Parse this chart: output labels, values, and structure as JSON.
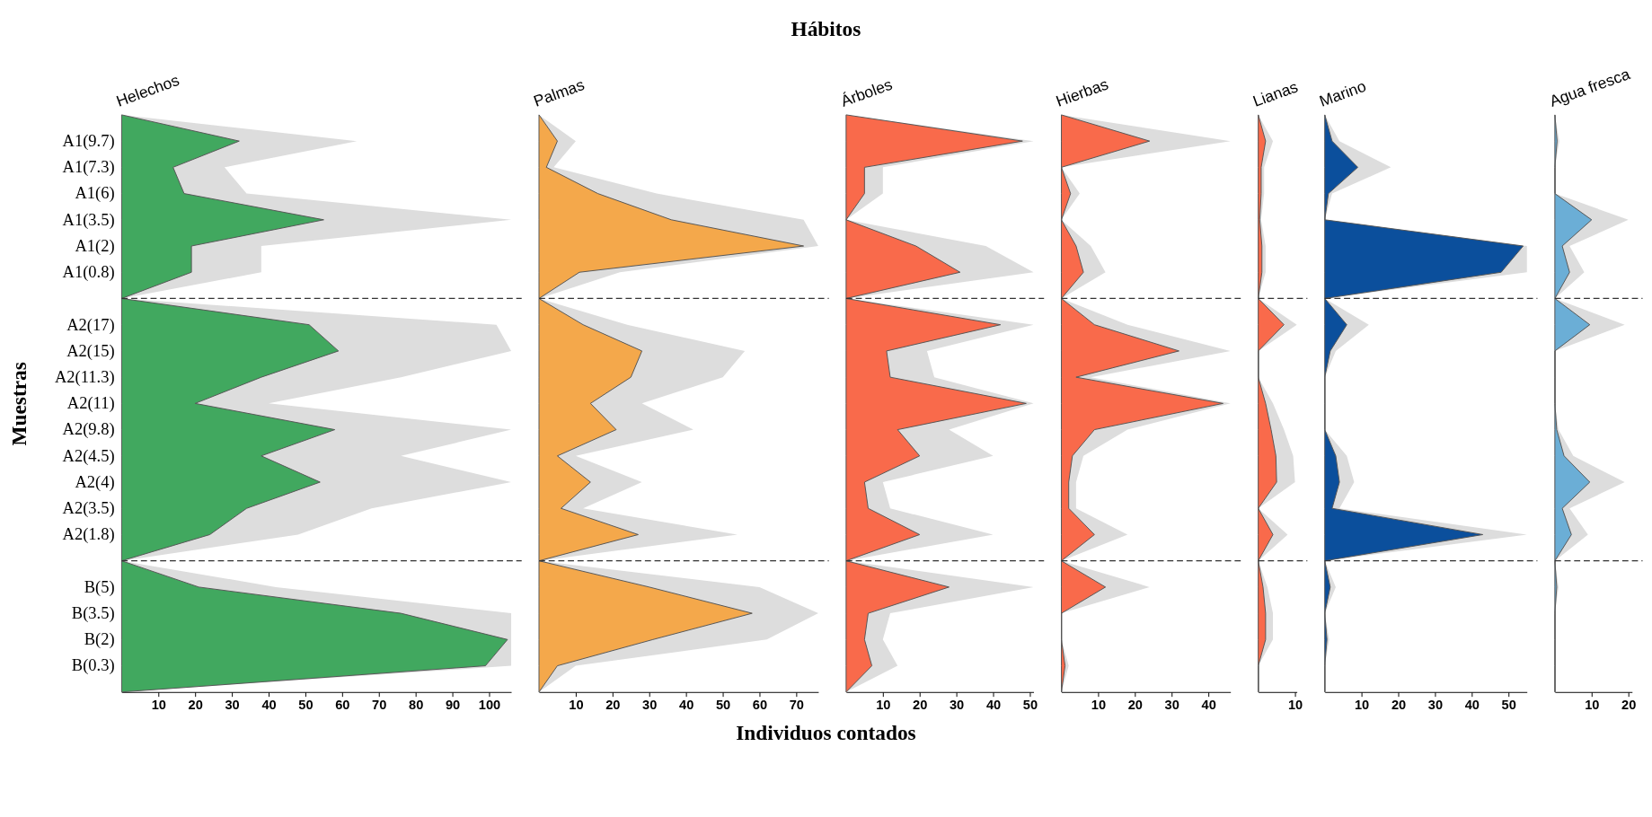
{
  "chart_data": [
    {
      "type": "area",
      "orientation": "horizontal",
      "title": "Helechos",
      "ylabel": "Muestras",
      "annotations": [
        "Hábitos",
        "Individuos contados"
      ],
      "categories": [
        null,
        "A1(9.7)",
        "A1(7.3)",
        "A1(6)",
        "A1(3.5)",
        "A1(2)",
        "A1(0.8)",
        null,
        "A2(17)",
        "A2(15)",
        "A2(11.3)",
        "A2(11)",
        "A2(9.8)",
        "A2(4.5)",
        "A2(4)",
        "A2(3.5)",
        "A2(1.8)",
        null,
        "B(5)",
        "B(3.5)",
        "B(2)",
        "B(0.3)",
        null
      ],
      "series": [
        {
          "color": "#dddddd",
          "values": [
            0,
            64,
            28,
            34,
            106,
            38,
            38,
            0,
            102,
            106,
            76,
            40,
            106,
            76,
            106,
            68,
            48,
            0,
            42,
            106,
            106,
            106,
            0
          ]
        },
        {
          "color": "#41a85f",
          "values": [
            0,
            32,
            14,
            17,
            55,
            19,
            19,
            0,
            51,
            59,
            38,
            20,
            58,
            38,
            54,
            34,
            24,
            0,
            21,
            76,
            105,
            99,
            0
          ]
        }
      ],
      "xlim": [
        0,
        106
      ],
      "xticks": [
        10,
        20,
        30,
        40,
        50,
        60,
        70,
        80,
        90,
        100
      ]
    },
    {
      "type": "area",
      "orientation": "horizontal",
      "title": "Palmas",
      "tick_labels": "x",
      "series": [
        {
          "color": "#dddddd",
          "values": [
            0,
            10,
            4,
            32,
            72,
            76,
            22,
            0,
            24,
            56,
            50,
            28,
            42,
            10,
            28,
            12,
            54,
            0,
            60,
            76,
            62,
            10,
            0
          ]
        },
        {
          "color": "#f4a84b",
          "values": [
            0,
            5,
            2,
            16,
            36,
            72,
            11,
            0,
            12,
            28,
            25,
            14,
            21,
            5,
            14,
            6,
            27,
            0,
            30,
            58,
            31,
            5,
            0
          ]
        }
      ],
      "xlim": [
        0,
        76
      ],
      "xticks": [
        10,
        20,
        30,
        40,
        50,
        60,
        70
      ]
    },
    {
      "type": "area",
      "orientation": "horizontal",
      "title": "Árboles",
      "tick_labels": "x",
      "series": [
        {
          "color": "#dddddd",
          "values": [
            0,
            51,
            10,
            10,
            0,
            38,
            51,
            0,
            51,
            22,
            24,
            51,
            28,
            40,
            10,
            12,
            40,
            0,
            51,
            12,
            10,
            14,
            0
          ]
        },
        {
          "color": "#f96a4b",
          "values": [
            0,
            48,
            5,
            5,
            0,
            19,
            31,
            0,
            42,
            11,
            12,
            49,
            14,
            20,
            5,
            6,
            20,
            0,
            28,
            6,
            5,
            7,
            0
          ]
        }
      ],
      "xlim": [
        0,
        51
      ],
      "xticks": [
        10,
        20,
        30,
        40,
        50
      ]
    },
    {
      "type": "area",
      "orientation": "horizontal",
      "title": "Hierbas",
      "tick_labels": "x",
      "series": [
        {
          "color": "#dddddd",
          "values": [
            0,
            46,
            0,
            5,
            0,
            8,
            12,
            0,
            18,
            46,
            8,
            46,
            18,
            6,
            4,
            4,
            18,
            0,
            24,
            0,
            0,
            2,
            0
          ]
        },
        {
          "color": "#f96a4b",
          "values": [
            0,
            24,
            0,
            2.5,
            0,
            4,
            6,
            0,
            9,
            32,
            4,
            44,
            9,
            3,
            2,
            2,
            9,
            0,
            12,
            0,
            0,
            1,
            0
          ]
        }
      ],
      "xlim": [
        0,
        46
      ],
      "xticks": [
        10,
        20,
        30,
        40
      ]
    },
    {
      "type": "area",
      "orientation": "horizontal",
      "title": "Lianas",
      "tick_labels": "x",
      "series": [
        {
          "color": "#dddddd",
          "values": [
            0,
            4,
            1.6,
            1.6,
            0.8,
            2,
            2,
            0,
            10.5,
            0,
            0,
            4,
            7,
            9.5,
            10,
            0,
            8,
            0,
            2.5,
            4,
            4,
            0,
            0
          ]
        },
        {
          "color": "#f96a4b",
          "values": [
            0,
            2,
            0.8,
            0.8,
            0.4,
            1,
            1,
            0,
            7,
            0,
            0,
            2,
            3.5,
            4.8,
            5,
            0,
            4,
            0,
            1.3,
            2,
            2,
            0,
            0
          ]
        }
      ],
      "xlim": [
        0,
        10.5
      ],
      "xticks": [
        10
      ]
    },
    {
      "type": "area",
      "orientation": "horizontal",
      "title": "Marino",
      "tick_labels": "x",
      "series": [
        {
          "color": "#dddddd",
          "values": [
            0,
            4,
            18,
            2,
            0,
            55,
            55,
            0,
            12,
            3,
            0,
            0,
            0,
            6,
            8,
            4,
            55,
            0,
            3,
            0,
            1.2,
            0,
            0
          ]
        },
        {
          "color": "#0b4f9c",
          "values": [
            0,
            2,
            9,
            1,
            0,
            54,
            48,
            0,
            6,
            1.5,
            0,
            0,
            0,
            3,
            4,
            2,
            43,
            0,
            1.5,
            0,
            0.6,
            0,
            0
          ]
        }
      ],
      "xlim": [
        0,
        55
      ],
      "xticks": [
        10,
        20,
        30,
        40,
        50
      ]
    },
    {
      "type": "area",
      "orientation": "horizontal",
      "title": "Agua fresca",
      "tick_labels": "x",
      "series": [
        {
          "color": "#dddddd",
          "values": [
            0,
            1.2,
            0,
            0,
            20,
            4,
            8,
            0,
            19,
            0,
            0,
            0,
            1,
            5,
            19,
            4,
            9,
            0,
            1,
            0,
            0,
            0,
            0
          ]
        },
        {
          "color": "#6baed6",
          "values": [
            0,
            0.6,
            0,
            0,
            10,
            2,
            4,
            0,
            9.5,
            0,
            0,
            0,
            0.5,
            2.5,
            9.5,
            2,
            4.5,
            0,
            0.5,
            0,
            0,
            0,
            0
          ]
        }
      ],
      "xlim": [
        0,
        21
      ],
      "xticks": [
        10,
        20
      ]
    }
  ]
}
